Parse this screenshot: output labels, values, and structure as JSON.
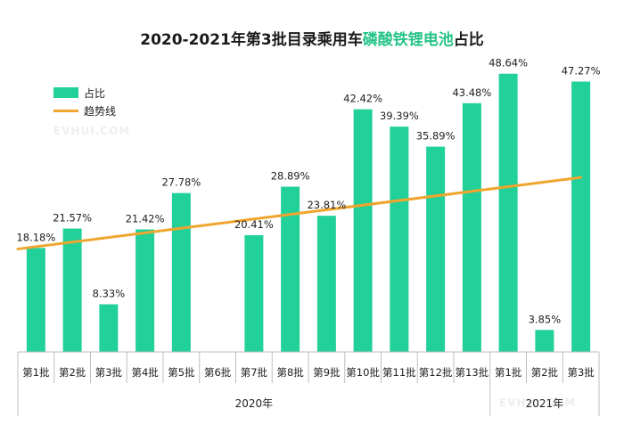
{
  "title": {
    "prefix": "2020-2021年第3批目录乘用车",
    "highlight": "磷酸铁锂电池",
    "suffix": "占比"
  },
  "watermark": "EVHUI.COM",
  "chart_data": {
    "type": "bar",
    "categories": [
      "第1批",
      "第2批",
      "第3批",
      "第4批",
      "第5批",
      "第6批",
      "第7批",
      "第8批",
      "第9批",
      "第10批",
      "第11批",
      "第12批",
      "第13批",
      "第1批",
      "第2批",
      "第3批"
    ],
    "groups": [
      {
        "label": "2020年",
        "count": 13
      },
      {
        "label": "2021年",
        "count": 3
      }
    ],
    "series": [
      {
        "name": "占比",
        "values": [
          18.18,
          21.57,
          8.33,
          21.42,
          27.78,
          null,
          20.41,
          28.89,
          23.81,
          42.42,
          39.39,
          35.89,
          43.48,
          48.64,
          3.85,
          47.27
        ],
        "labels": [
          "18.18%",
          "21.57%",
          "8.33%",
          "21.42%",
          "27.78%",
          "",
          "20.41%",
          "28.89%",
          "23.81%",
          "42.42%",
          "39.39%",
          "35.89%",
          "43.48%",
          "48.64%",
          "3.85%",
          "47.27%"
        ],
        "color": "#22d09a"
      },
      {
        "name": "趋势线",
        "type": "line",
        "trend": [
          18.0,
          30.5
        ],
        "color": "#f0a52e"
      }
    ],
    "ylim": [
      0,
      50
    ],
    "grid": false,
    "legend_position": "top-left"
  }
}
